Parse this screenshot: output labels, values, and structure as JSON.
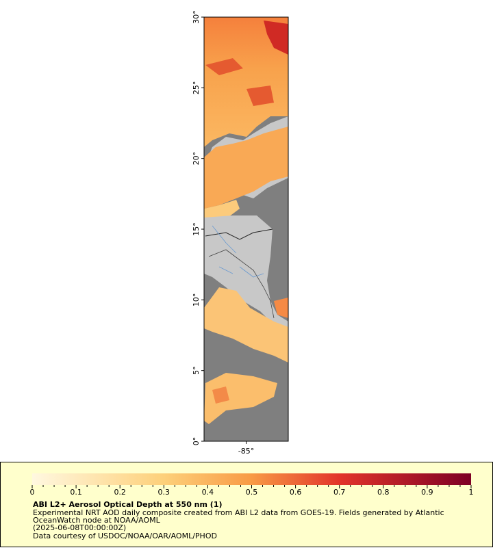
{
  "map": {
    "lat_range": [
      0,
      30
    ],
    "lon_range": [
      -88,
      -82
    ],
    "lat_ticks": [
      {
        "value": 0,
        "label": "0°"
      },
      {
        "value": 5,
        "label": "5°"
      },
      {
        "value": 10,
        "label": "10°"
      },
      {
        "value": 15,
        "label": "15°"
      },
      {
        "value": 20,
        "label": "20°"
      },
      {
        "value": 25,
        "label": "25°"
      },
      {
        "value": 30,
        "label": "30°"
      }
    ],
    "lon_ticks": [
      {
        "value": -85,
        "label": "-85°"
      }
    ]
  },
  "colorbar": {
    "range": [
      0,
      1
    ],
    "ticks": [
      0,
      0.1,
      0.2,
      0.3,
      0.4,
      0.5,
      0.6,
      0.7,
      0.8,
      0.9,
      1
    ]
  },
  "caption": {
    "title": "ABI L2+ Aerosol Optical Depth at 550 nm (1)",
    "lines": [
      "Experimental NRT AOD daily composite created from ABI L2 data from GOES-19. Fields generated by Atlantic",
      "OceanWatch node at NOAA/AOML",
      "(2025-06-08T00:00:00Z)",
      "Data courtesy of USDOC/NOAA/OAR/AOML/PHOD"
    ]
  }
}
